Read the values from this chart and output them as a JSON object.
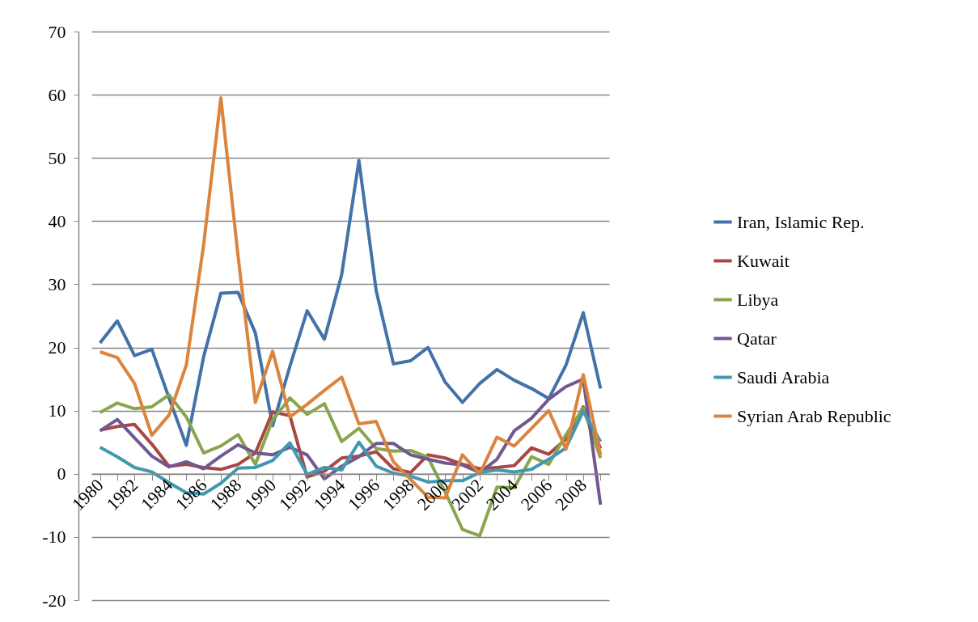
{
  "chart_data": {
    "type": "line",
    "categories": [
      "1980",
      null,
      "1982",
      null,
      "1984",
      null,
      "1986",
      null,
      "1988",
      null,
      "1990",
      null,
      "1992",
      null,
      "1994",
      null,
      "1996",
      null,
      "1998",
      null,
      "2000",
      null,
      "2002",
      null,
      "2004",
      null,
      "2006",
      null,
      "2008",
      null
    ],
    "series": [
      {
        "name": "Iran, Islamic Rep.",
        "color": "#4372a9",
        "values": [
          20.7,
          24.2,
          18.7,
          19.7,
          12,
          4.5,
          18.5,
          28.6,
          28.7,
          22.3,
          7.6,
          17,
          25.8,
          21.3,
          31.5,
          49.6,
          29,
          17.4,
          17.9,
          20,
          14.5,
          11.3,
          14.3,
          16.5,
          14.8,
          13.5,
          11.9,
          17.2,
          25.5,
          13.5
        ]
      },
      {
        "name": "Kuwait",
        "color": "#aa4643",
        "values": [
          6.9,
          7.5,
          7.8,
          4.7,
          1.2,
          1.5,
          1.0,
          0.7,
          1.5,
          3.3,
          9.8,
          9.2,
          -0.5,
          0.4,
          2.5,
          2.8,
          3.5,
          0.8,
          0.2,
          3.0,
          2.5,
          1.5,
          0.8,
          1.0,
          1.3,
          4.1,
          3.1,
          5.5,
          10.6,
          4.0
        ]
      },
      {
        "name": "Libya",
        "color": "#89a54e",
        "values": [
          9.7,
          11.2,
          10.3,
          10.6,
          12.5,
          9,
          3.3,
          4.4,
          6.2,
          1.5,
          8.5,
          12.0,
          9.4,
          11.1,
          5.1,
          7.2,
          4.0,
          3.6,
          3.7,
          2.6,
          -2.9,
          -8.8,
          -9.8,
          -2.1,
          -2.2,
          2.7,
          1.5,
          6.2,
          10.4,
          2.5
        ]
      },
      {
        "name": "Qatar",
        "color": "#71588f",
        "values": [
          6.8,
          8.6,
          5.7,
          2.8,
          1.1,
          1.9,
          0.8,
          2.8,
          4.6,
          3.3,
          3.0,
          4.2,
          3.0,
          -0.8,
          1.2,
          2.7,
          4.8,
          4.8,
          3.0,
          2.3,
          1.7,
          1.4,
          0.2,
          2.3,
          6.8,
          8.8,
          11.8,
          13.8,
          15.0,
          -4.9
        ]
      },
      {
        "name": "Saudi Arabia",
        "color": "#4198af",
        "values": [
          4.2,
          2.7,
          1.0,
          0.3,
          -1.4,
          -3.0,
          -3.2,
          -1.5,
          0.9,
          1.0,
          2.1,
          4.9,
          -0.1,
          1.0,
          0.6,
          5.0,
          1.2,
          0.1,
          -0.4,
          -1.3,
          -1.1,
          -1.1,
          0.2,
          0.6,
          0.3,
          0.7,
          2.3,
          4.1,
          9.9,
          5.1
        ]
      },
      {
        "name": "Syrian Arab Republic",
        "color": "#db843d",
        "values": [
          19.3,
          18.4,
          14.3,
          6.1,
          9.3,
          17.2,
          36.2,
          59.5,
          34.4,
          11.3,
          19.4,
          9.0,
          11.0,
          13.2,
          15.3,
          7.9,
          8.3,
          1.9,
          -0.9,
          -3.7,
          -3.8,
          3.0,
          0.0,
          5.8,
          4.4,
          7.2,
          10.0,
          3.9,
          15.7,
          3.0
        ]
      }
    ],
    "ylim": [
      -20,
      70
    ],
    "yticks": [
      -20,
      -10,
      0,
      10,
      20,
      30,
      40,
      50,
      60,
      70
    ],
    "grid": "y",
    "legend": "right"
  }
}
